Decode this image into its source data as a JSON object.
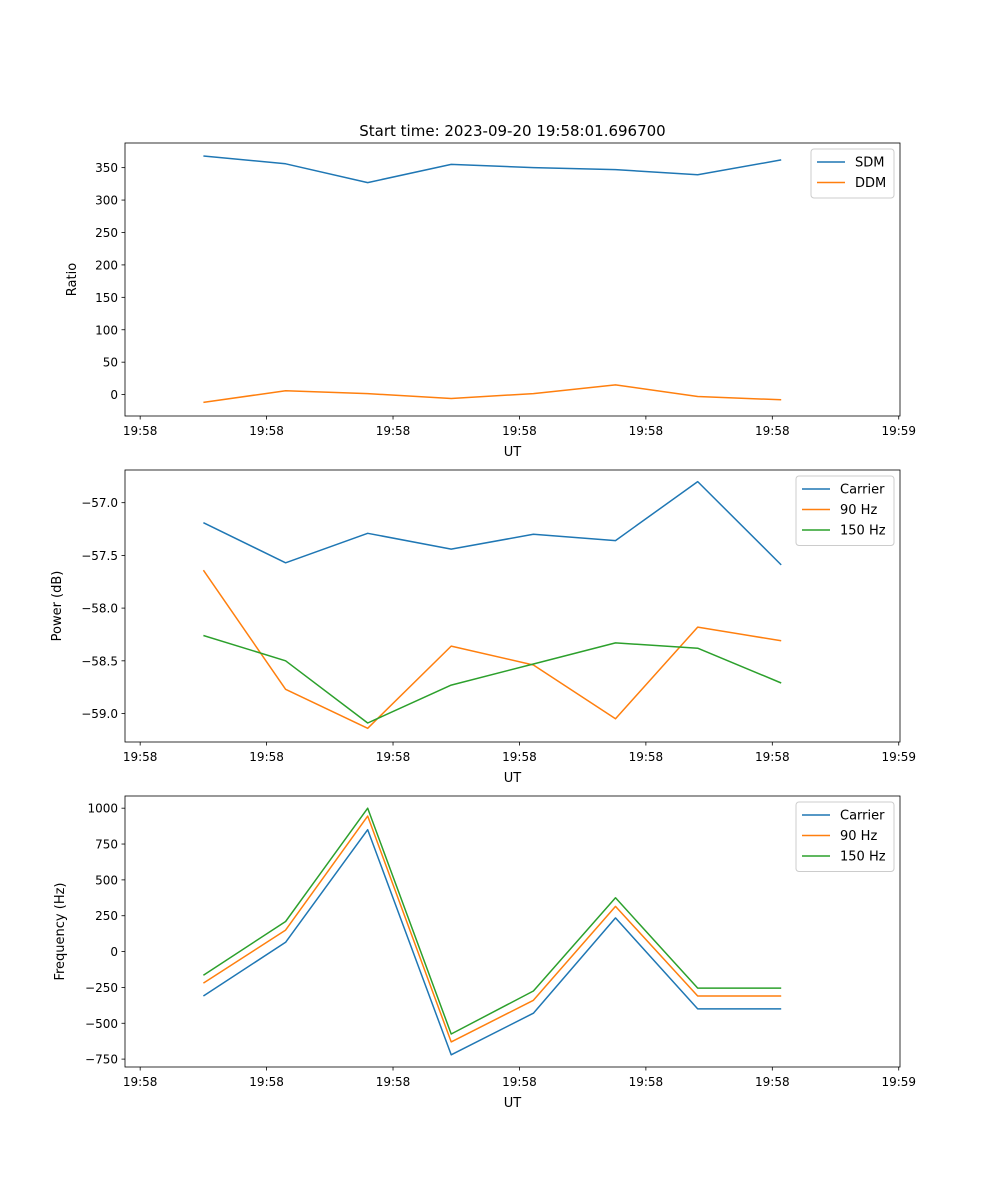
{
  "chart_data": [
    {
      "type": "line",
      "title": "Start time: 2023-09-20 19:58:01.696700",
      "xlabel": "UT",
      "ylabel": "Ratio",
      "x_units": "seconds after 19:58:00",
      "x": [
        5.0,
        11.5,
        18.0,
        24.6,
        31.1,
        37.6,
        44.1,
        50.7
      ],
      "xlim": [
        -1.2,
        60.1
      ],
      "x_ticks": [
        0,
        10,
        20,
        30,
        40,
        50,
        60
      ],
      "x_tick_labels": [
        "19:58",
        "19:58",
        "19:58",
        "19:58",
        "19:58",
        "19:58",
        "19:59"
      ],
      "ylim": [
        -33,
        388
      ],
      "y_ticks": [
        0,
        50,
        100,
        150,
        200,
        250,
        300,
        350
      ],
      "y_tick_labels": [
        "0",
        "50",
        "100",
        "150",
        "200",
        "250",
        "300",
        "350"
      ],
      "grid": false,
      "legend": "top-right",
      "series": [
        {
          "name": "SDM",
          "color": "#1f77b4",
          "values": [
            368,
            356,
            327,
            355,
            350,
            347,
            339,
            362
          ]
        },
        {
          "name": "DDM",
          "color": "#ff7f0e",
          "values": [
            -12,
            6,
            1.5,
            -6,
            1.5,
            15,
            -3,
            -8
          ]
        }
      ]
    },
    {
      "type": "line",
      "title": "",
      "xlabel": "UT",
      "ylabel": "Power (dB)",
      "x_units": "seconds after 19:58:00",
      "x": [
        5.0,
        11.5,
        18.0,
        24.6,
        31.1,
        37.6,
        44.1,
        50.7
      ],
      "xlim": [
        -1.2,
        60.1
      ],
      "x_ticks": [
        0,
        10,
        20,
        30,
        40,
        50,
        60
      ],
      "x_tick_labels": [
        "19:58",
        "19:58",
        "19:58",
        "19:58",
        "19:58",
        "19:58",
        "19:59"
      ],
      "ylim": [
        -59.27,
        -56.69
      ],
      "y_ticks": [
        -59.0,
        -58.5,
        -58.0,
        -57.5,
        -57.0
      ],
      "y_tick_labels": [
        "−59.0",
        "−58.5",
        "−58.0",
        "−57.5",
        "−57.0"
      ],
      "grid": false,
      "legend": "top-right",
      "series": [
        {
          "name": "Carrier",
          "color": "#1f77b4",
          "values": [
            -57.19,
            -57.57,
            -57.29,
            -57.44,
            -57.3,
            -57.36,
            -56.8,
            -57.59
          ]
        },
        {
          "name": "90 Hz",
          "color": "#ff7f0e",
          "values": [
            -57.64,
            -58.77,
            -59.14,
            -58.36,
            -58.54,
            -59.05,
            -58.18,
            -58.31
          ]
        },
        {
          "name": "150 Hz",
          "color": "#2ca02c",
          "values": [
            -58.26,
            -58.5,
            -59.09,
            -58.73,
            -58.53,
            -58.33,
            -58.38,
            -58.71
          ]
        }
      ]
    },
    {
      "type": "line",
      "title": "",
      "xlabel": "UT",
      "ylabel": "Frequency (Hz)",
      "x_units": "seconds after 19:58:00",
      "x": [
        5.0,
        11.5,
        18.0,
        24.6,
        31.1,
        37.6,
        44.1,
        50.7
      ],
      "xlim": [
        -1.2,
        60.1
      ],
      "x_ticks": [
        0,
        10,
        20,
        30,
        40,
        50,
        60
      ],
      "x_tick_labels": [
        "19:58",
        "19:58",
        "19:58",
        "19:58",
        "19:58",
        "19:58",
        "19:59"
      ],
      "ylim": [
        -805,
        1085
      ],
      "y_ticks": [
        -750,
        -500,
        -250,
        0,
        250,
        500,
        750,
        1000
      ],
      "y_tick_labels": [
        "−750",
        "−500",
        "−250",
        "0",
        "250",
        "500",
        "750",
        "1000"
      ],
      "grid": false,
      "legend": "top-right",
      "series": [
        {
          "name": "Carrier",
          "color": "#1f77b4",
          "values": [
            -310,
            65,
            850,
            -720,
            -430,
            235,
            -400,
            -400
          ]
        },
        {
          "name": "90 Hz",
          "color": "#ff7f0e",
          "values": [
            -220,
            150,
            945,
            -630,
            -340,
            315,
            -310,
            -310
          ]
        },
        {
          "name": "150 Hz",
          "color": "#2ca02c",
          "values": [
            -165,
            210,
            1000,
            -575,
            -275,
            375,
            -255,
            -255
          ]
        }
      ]
    }
  ]
}
